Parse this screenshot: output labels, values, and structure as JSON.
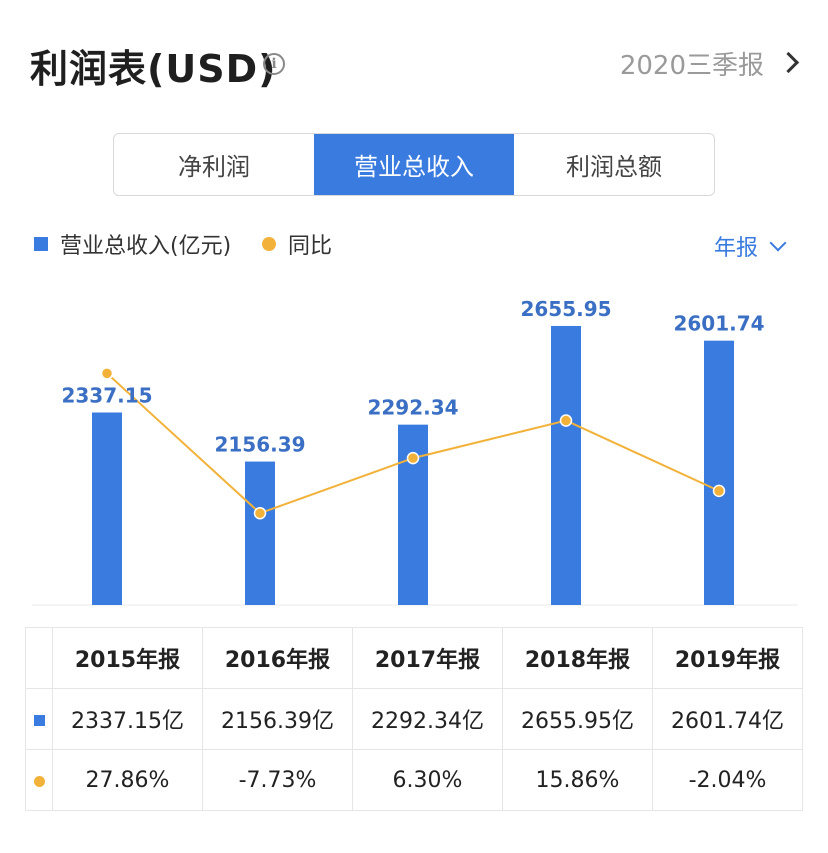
{
  "header": {
    "title": "利润表(USD)",
    "info_icon": "info-icon",
    "period": "2020三季报"
  },
  "tabs": [
    {
      "label": "净利润",
      "active": false
    },
    {
      "label": "营业总收入",
      "active": true
    },
    {
      "label": "利润总额",
      "active": false
    }
  ],
  "legend": {
    "bar_label": "营业总收入(亿元)",
    "line_label": "同比",
    "frequency": "年报"
  },
  "colors": {
    "accent": "#3a7be0",
    "line": "#f2b23a",
    "positive": "#e5474b",
    "negative": "#2aa772"
  },
  "chart_data": {
    "type": "bar",
    "categories": [
      "2015年报",
      "2016年报",
      "2017年报",
      "2018年报",
      "2019年报"
    ],
    "series": [
      {
        "name": "营业总收入(亿元)",
        "type": "bar",
        "values": [
          2337.15,
          2156.39,
          2292.34,
          2655.95,
          2601.74
        ]
      },
      {
        "name": "同比",
        "type": "line",
        "values": [
          27.86,
          -7.73,
          6.3,
          15.86,
          -2.04
        ]
      }
    ],
    "data_labels": [
      "2337.15",
      "2156.39",
      "2292.34",
      "2655.95",
      "2601.74"
    ],
    "grid": false,
    "legend_position": "top-left"
  },
  "table": {
    "headers": [
      "2015年报",
      "2016年报",
      "2017年报",
      "2018年报",
      "2019年报"
    ],
    "revenue_row": [
      "2337.15亿",
      "2156.39亿",
      "2292.34亿",
      "2655.95亿",
      "2601.74亿"
    ],
    "yoy_row": [
      "27.86%",
      "-7.73%",
      "6.30%",
      "15.86%",
      "-2.04%"
    ]
  }
}
